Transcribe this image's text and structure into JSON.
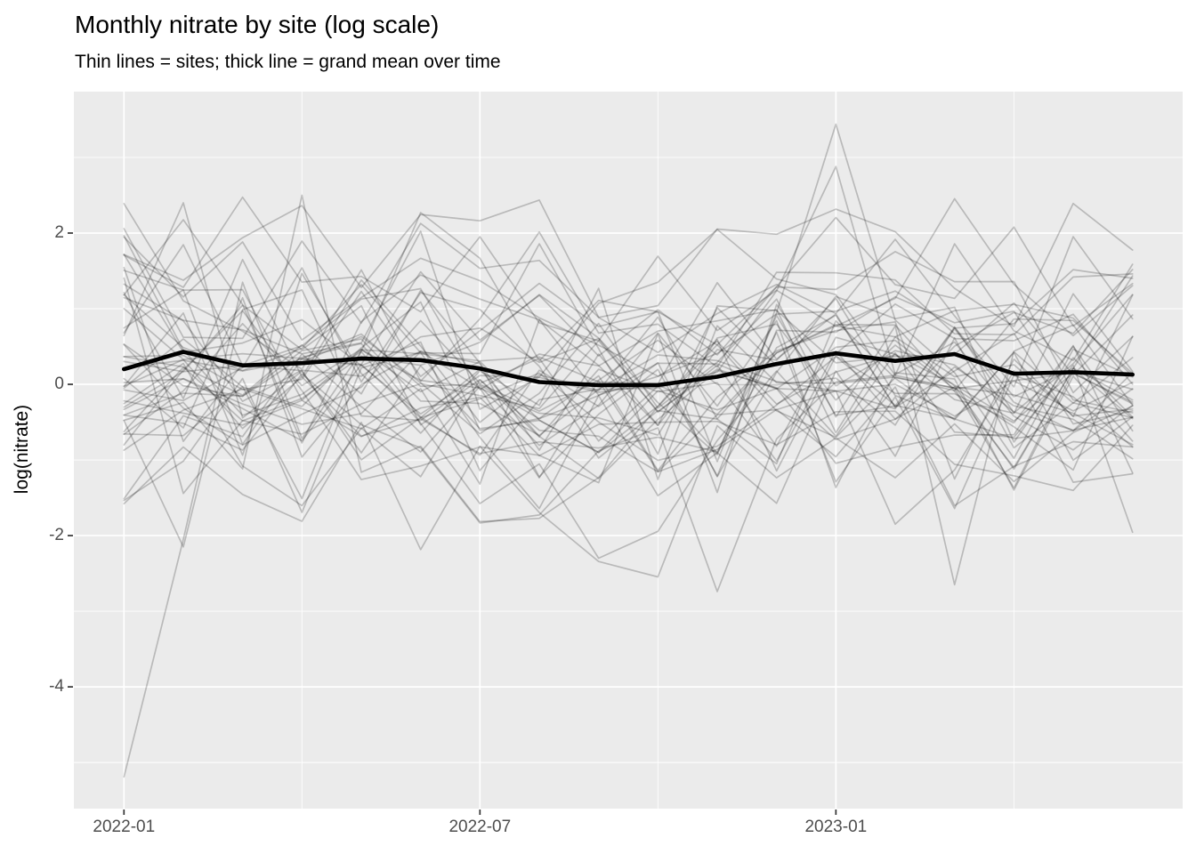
{
  "header": {
    "title": "Monthly nitrate by site (log scale)",
    "subtitle": "Thin lines = sites; thick line = grand mean over time"
  },
  "chart_data": {
    "type": "line",
    "title": "Monthly nitrate by site (log scale)",
    "subtitle": "Thin lines = sites; thick line = grand mean over time",
    "xlabel": "",
    "ylabel": "log(nitrate)",
    "x": [
      "2022-01",
      "2022-02",
      "2022-03",
      "2022-04",
      "2022-05",
      "2022-06",
      "2022-07",
      "2022-08",
      "2022-09",
      "2022-10",
      "2022-11",
      "2022-12",
      "2023-01",
      "2023-02",
      "2023-03",
      "2023-04",
      "2023-05",
      "2023-06"
    ],
    "series": [
      {
        "name": "grand mean",
        "role": "mean",
        "values": [
          0.2,
          0.43,
          0.25,
          0.28,
          0.34,
          0.32,
          0.21,
          0.03,
          -0.01,
          -0.01,
          0.1,
          0.27,
          0.41,
          0.31,
          0.4,
          0.14,
          0.16,
          0.13
        ]
      }
    ],
    "x_axis": {
      "tick_labels": [
        "2022-01",
        "2022-07",
        "2023-01"
      ],
      "tick_month_index": [
        0,
        6,
        12
      ],
      "minor_month_index": [
        3,
        9,
        15
      ]
    },
    "y_axis": {
      "label": "log(nitrate)",
      "ticks": [
        2,
        0,
        -2,
        -4
      ],
      "minor": [
        3,
        1,
        -1,
        -3,
        -5
      ],
      "domain": [
        -5.61,
        3.87
      ]
    },
    "grid": "on",
    "legend": "none",
    "sites_simulation": {
      "n_sites": 48,
      "seed": 42,
      "site_sd": 0.7,
      "noise_sd": 0.62,
      "value_range": [
        -2.6,
        2.55
      ],
      "features": [
        {
          "site": 0,
          "overrides": {
            "0": -5.19,
            "1": -2.05,
            "2": 1.35
          }
        },
        {
          "site": 1,
          "overrides": {
            "11": 0.95,
            "12": 3.44,
            "13": 0.85
          }
        },
        {
          "site": 2,
          "overrides": {
            "12": 2.88
          }
        },
        {
          "site": 3,
          "overrides": {
            "1": 2.4
          }
        },
        {
          "site": 4,
          "overrides": {
            "10": -2.74
          }
        },
        {
          "site": 5,
          "overrides": {
            "14": -2.65
          }
        },
        {
          "site": 6,
          "overrides": {
            "3": 2.5
          }
        },
        {
          "site": 7,
          "overrides": {
            "1": -2.15
          }
        }
      ]
    },
    "colors": {
      "panel_bg": "#EBEBEB",
      "grid": "#FFFFFF",
      "mean_line": "#000000",
      "site_line_alpha": 0.21,
      "tick": "#333333",
      "tick_label": "#4D4D4D",
      "title": "#000000"
    }
  }
}
